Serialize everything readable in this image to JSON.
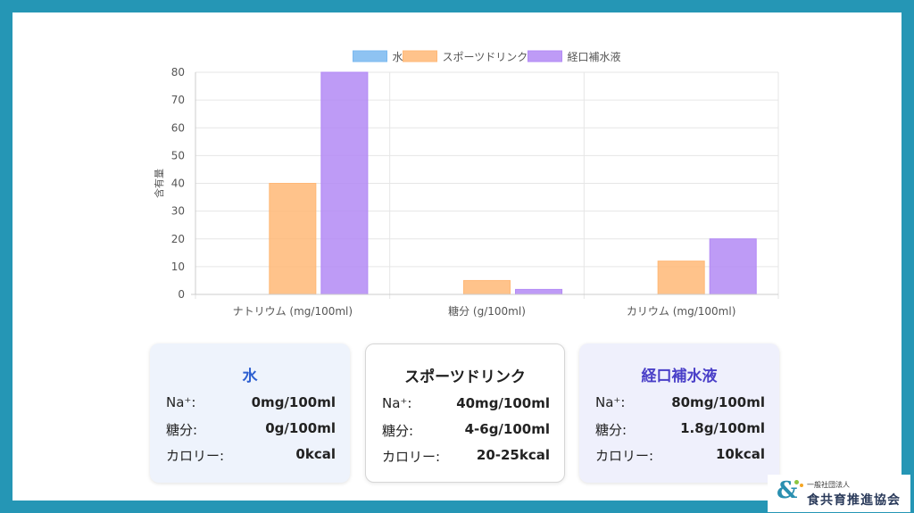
{
  "chart_data": {
    "type": "bar",
    "categories": [
      "ナトリウム (mg/100ml)",
      "糖分 (g/100ml)",
      "カリウム (mg/100ml)"
    ],
    "series": [
      {
        "name": "水",
        "values": [
          0,
          0,
          0
        ],
        "color": "#7ab8f0"
      },
      {
        "name": "スポーツドリンク",
        "values": [
          40,
          5,
          12
        ],
        "color": "#ffb877"
      },
      {
        "name": "経口補水液",
        "values": [
          80,
          1.8,
          20
        ],
        "color": "#b38af5"
      }
    ],
    "ylabel": "含有量",
    "ylim": [
      0,
      80
    ],
    "yticks": [
      0,
      10,
      20,
      30,
      40,
      50,
      60,
      70,
      80
    ],
    "grid": true,
    "legend": "top-center"
  },
  "cards": [
    {
      "title": "水",
      "rows": [
        {
          "label": "Na⁺:",
          "value": "0mg/100ml"
        },
        {
          "label": "糖分:",
          "value": "0g/100ml"
        },
        {
          "label": "カロリー:",
          "value": "0kcal"
        }
      ]
    },
    {
      "title": "スポーツドリンク",
      "rows": [
        {
          "label": "Na⁺:",
          "value": "40mg/100ml"
        },
        {
          "label": "糖分:",
          "value": "4-6g/100ml"
        },
        {
          "label": "カロリー:",
          "value": "20-25kcal"
        }
      ]
    },
    {
      "title": "経口補水液",
      "rows": [
        {
          "label": "Na⁺:",
          "value": "80mg/100ml"
        },
        {
          "label": "糖分:",
          "value": "1.8g/100ml"
        },
        {
          "label": "カロリー:",
          "value": "10kcal"
        }
      ]
    }
  ],
  "logo": {
    "sub": "一般社団法人",
    "name": "食共育推進協会",
    "mark": "&"
  }
}
